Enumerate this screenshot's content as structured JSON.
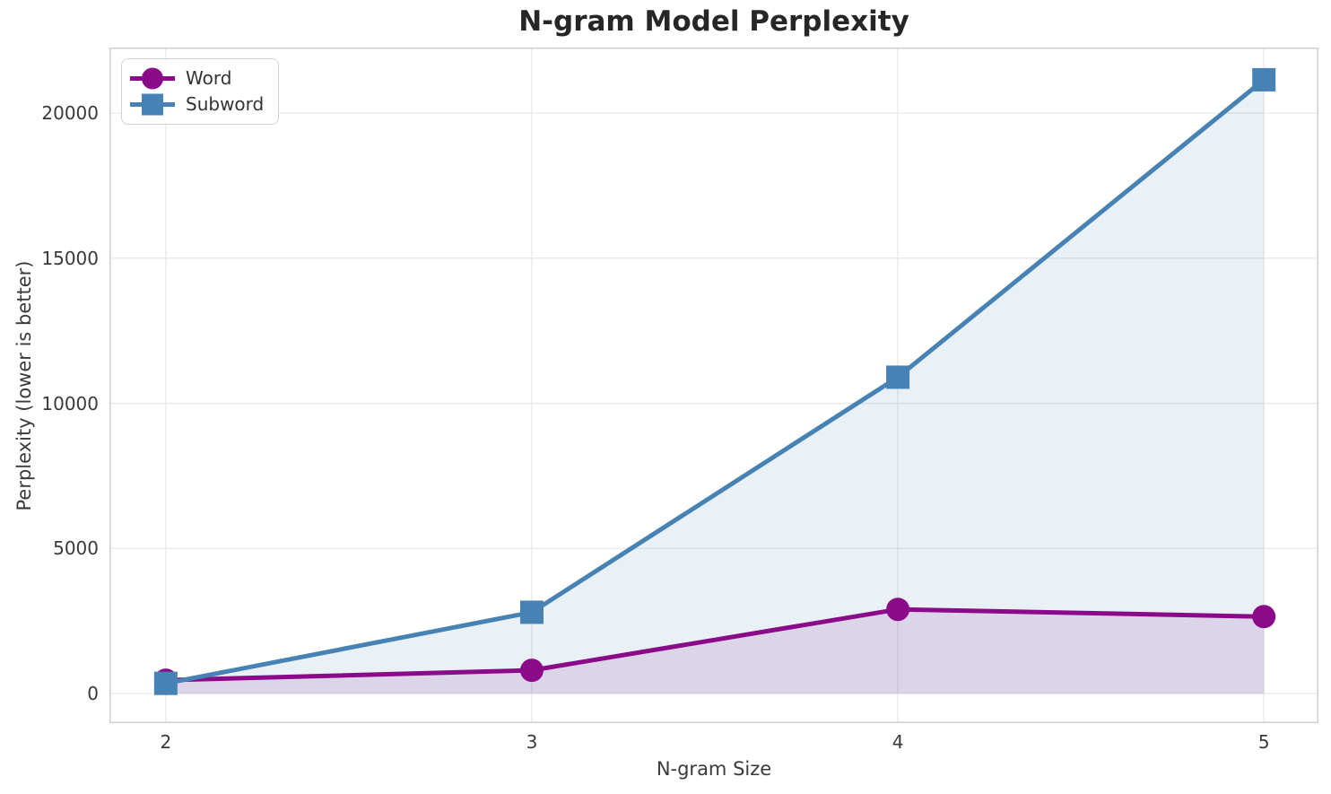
{
  "chart_data": {
    "type": "line",
    "title": "N-gram Model Perplexity",
    "xlabel": "N-gram Size",
    "ylabel": "Perplexity (lower is better)",
    "x": [
      2,
      3,
      4,
      5
    ],
    "xticks": [
      "2",
      "3",
      "4",
      "5"
    ],
    "yticks": [
      0,
      5000,
      10000,
      15000,
      20000
    ],
    "xlim": [
      1.846,
      5.149
    ],
    "ylim": [
      -1020,
      22260
    ],
    "grid": true,
    "grid_color": "#e8e8e8",
    "spine_color": "#cfcfcf",
    "legend_position": "upper left",
    "marker_size": 13,
    "line_width": 5,
    "series": [
      {
        "name": "Word",
        "color": "#8a0a8a",
        "marker": "circle",
        "fill_alpha": 0.12,
        "values": [
          460,
          800,
          2900,
          2650
        ]
      },
      {
        "name": "Subword",
        "color": "#4682B4",
        "marker": "square",
        "fill_alpha": 0.12,
        "values": [
          350,
          2800,
          10900,
          21150
        ]
      }
    ]
  }
}
